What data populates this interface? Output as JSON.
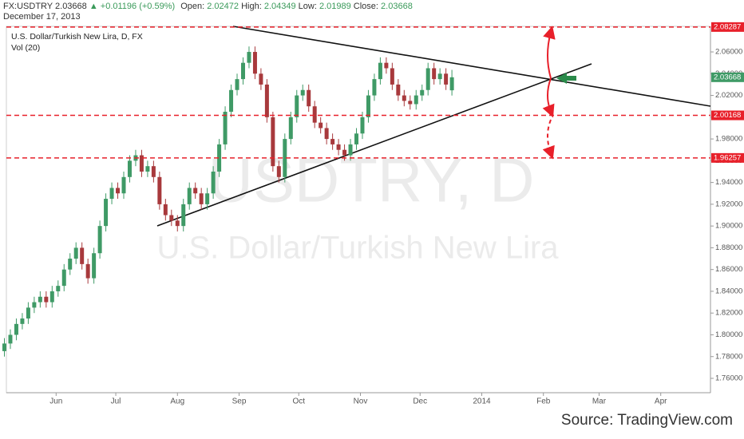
{
  "chart_data": {
    "type": "candlestick",
    "symbol": "FX:USDTRY",
    "change": "▲ +0.01196 (+0.59%)",
    "open_label": "Open:",
    "high_label": "High:",
    "low_label": "Low:",
    "close_label": "Close:",
    "date": "December 17, 2013",
    "legend_title": "U.S. Dollar/Turkish New Lira, D, FX",
    "indicator": "Vol (20)",
    "watermark": "USDTRY, D",
    "watermark_subtitle": "U.S. Dollar/Turkish New Lira",
    "source": "Source: TradingView.com",
    "up_color": "#3f9a66",
    "down_color": "#a8393c",
    "x": [
      "2013-05-06",
      "2013-05-09",
      "2013-05-12",
      "2013-05-15",
      "2013-05-18",
      "2013-05-21",
      "2013-05-24",
      "2013-05-27",
      "2013-05-30",
      "2013-06-02",
      "2013-06-05",
      "2013-06-08",
      "2013-06-11",
      "2013-06-14",
      "2013-06-17",
      "2013-06-20",
      "2013-06-23",
      "2013-06-26",
      "2013-06-29",
      "2013-07-02",
      "2013-07-05",
      "2013-07-08",
      "2013-07-11",
      "2013-07-14",
      "2013-07-17",
      "2013-07-20",
      "2013-07-23",
      "2013-07-26",
      "2013-07-29",
      "2013-08-01",
      "2013-08-04",
      "2013-08-07",
      "2013-08-10",
      "2013-08-13",
      "2013-08-16",
      "2013-08-19",
      "2013-08-22",
      "2013-08-25",
      "2013-08-28",
      "2013-08-31",
      "2013-09-03",
      "2013-09-06",
      "2013-09-09",
      "2013-09-12",
      "2013-09-15",
      "2013-09-18",
      "2013-09-21",
      "2013-09-24",
      "2013-09-27",
      "2013-09-30",
      "2013-10-03",
      "2013-10-06",
      "2013-10-09",
      "2013-10-12",
      "2013-10-15",
      "2013-10-18",
      "2013-10-21",
      "2013-10-24",
      "2013-10-27",
      "2013-10-30",
      "2013-11-02",
      "2013-11-05",
      "2013-11-08",
      "2013-11-11",
      "2013-11-14",
      "2013-11-17",
      "2013-11-20",
      "2013-11-23",
      "2013-11-26",
      "2013-11-29",
      "2013-12-02",
      "2013-12-05",
      "2013-12-08",
      "2013-12-11",
      "2013-12-14",
      "2013-12-17"
    ],
    "open": [
      1.785,
      1.792,
      1.8,
      1.81,
      1.815,
      1.825,
      1.83,
      1.835,
      1.83,
      1.84,
      1.845,
      1.86,
      1.87,
      1.88,
      1.865,
      1.852,
      1.875,
      1.9,
      1.925,
      1.935,
      1.93,
      1.945,
      1.96,
      1.965,
      1.95,
      1.955,
      1.945,
      1.92,
      1.91,
      1.905,
      1.9,
      1.92,
      1.935,
      1.93,
      1.92,
      1.93,
      1.95,
      1.975,
      2.005,
      2.025,
      2.035,
      2.05,
      2.06,
      2.04,
      2.03,
      2.0,
      1.955,
      1.945,
      1.98,
      2.0,
      2.02,
      2.025,
      2.01,
      1.995,
      1.99,
      1.98,
      1.975,
      1.97,
      1.965,
      1.975,
      1.985,
      2.0,
      2.02,
      2.035,
      2.05,
      2.045,
      2.03,
      2.02,
      2.015,
      2.012,
      2.02,
      2.025,
      2.045,
      2.035,
      2.04,
      2.02472
    ],
    "high": [
      1.797,
      1.805,
      1.815,
      1.82,
      1.83,
      1.835,
      1.84,
      1.84,
      1.845,
      1.85,
      1.865,
      1.875,
      1.885,
      1.885,
      1.87,
      1.88,
      1.905,
      1.93,
      1.94,
      1.94,
      1.95,
      1.965,
      1.97,
      1.97,
      1.96,
      1.96,
      1.95,
      1.925,
      1.915,
      1.91,
      1.925,
      1.94,
      1.94,
      1.935,
      1.935,
      1.955,
      1.98,
      2.01,
      2.03,
      2.04,
      2.055,
      2.065,
      2.065,
      2.045,
      2.035,
      2.005,
      1.96,
      1.985,
      2.005,
      2.025,
      2.03,
      2.03,
      2.015,
      2.0,
      1.995,
      1.985,
      1.98,
      1.975,
      1.98,
      1.99,
      2.005,
      2.025,
      2.04,
      2.055,
      2.055,
      2.05,
      2.035,
      2.025,
      2.02,
      2.025,
      2.03,
      2.05,
      2.05,
      2.045,
      2.045,
      2.04349
    ],
    "low": [
      1.78,
      1.787,
      1.795,
      1.805,
      1.81,
      1.82,
      1.825,
      1.825,
      1.825,
      1.835,
      1.84,
      1.855,
      1.865,
      1.86,
      1.847,
      1.847,
      1.87,
      1.895,
      1.92,
      1.925,
      1.925,
      1.94,
      1.955,
      1.945,
      1.945,
      1.94,
      1.915,
      1.905,
      1.9,
      1.895,
      1.895,
      1.915,
      1.925,
      1.915,
      1.915,
      1.925,
      1.945,
      1.97,
      2.0,
      2.02,
      2.03,
      2.045,
      2.035,
      2.025,
      1.995,
      1.95,
      1.94,
      1.94,
      1.975,
      1.995,
      2.015,
      2.005,
      1.99,
      1.985,
      1.975,
      1.97,
      1.965,
      1.96,
      1.96,
      1.97,
      1.98,
      1.995,
      2.015,
      2.03,
      2.04,
      2.025,
      2.015,
      2.01,
      2.007,
      2.007,
      2.015,
      2.02,
      2.03,
      2.03,
      2.025,
      2.01989
    ],
    "close": [
      1.792,
      1.8,
      1.81,
      1.815,
      1.825,
      1.83,
      1.835,
      1.83,
      1.84,
      1.845,
      1.86,
      1.87,
      1.88,
      1.865,
      1.852,
      1.875,
      1.9,
      1.925,
      1.935,
      1.93,
      1.945,
      1.96,
      1.965,
      1.95,
      1.955,
      1.945,
      1.92,
      1.91,
      1.905,
      1.9,
      1.92,
      1.935,
      1.93,
      1.92,
      1.93,
      1.95,
      1.975,
      2.005,
      2.025,
      2.035,
      2.05,
      2.06,
      2.04,
      2.03,
      2.0,
      1.955,
      1.945,
      1.98,
      2.0,
      2.02,
      2.025,
      2.01,
      1.995,
      1.99,
      1.98,
      1.975,
      1.97,
      1.965,
      1.975,
      1.985,
      2.0,
      2.02,
      2.035,
      2.05,
      2.045,
      2.03,
      2.02,
      2.015,
      2.012,
      2.02,
      2.025,
      2.045,
      2.035,
      2.04,
      2.03,
      2.03668
    ],
    "levels": [
      2.08287,
      2.00168,
      1.96257
    ],
    "level_color": "#e8202a",
    "xlim": [
      "2013-05-07",
      "2014-04-26"
    ],
    "xticks": [
      {
        "value": "2013-06-01",
        "label": "Jun"
      },
      {
        "value": "2013-07-01",
        "label": "Jul"
      },
      {
        "value": "2013-08-01",
        "label": "Aug"
      },
      {
        "value": "2013-09-01",
        "label": "Sep"
      },
      {
        "value": "2013-10-01",
        "label": "Oct"
      },
      {
        "value": "2013-11-01",
        "label": "Nov"
      },
      {
        "value": "2013-12-01",
        "label": "Dec"
      },
      {
        "value": "2014-01-01",
        "label": "2014"
      },
      {
        "value": "2014-02-01",
        "label": "Feb"
      },
      {
        "value": "2014-03-01",
        "label": "Mar"
      },
      {
        "value": "2014-04-01",
        "label": "Apr"
      }
    ],
    "ylim": [
      1.7468,
      2.0835
    ],
    "yticks": [
      {
        "value": 1.76,
        "label": "1.76000"
      },
      {
        "value": 1.78,
        "label": "1.78000"
      },
      {
        "value": 1.8,
        "label": "1.80000"
      },
      {
        "value": 1.82,
        "label": "1.82000"
      },
      {
        "value": 1.84,
        "label": "1.84000"
      },
      {
        "value": 1.86,
        "label": "1.86000"
      },
      {
        "value": 1.88,
        "label": "1.88000"
      },
      {
        "value": 1.9,
        "label": "1.90000"
      },
      {
        "value": 1.92,
        "label": "1.92000"
      },
      {
        "value": 1.94,
        "label": "1.94000"
      },
      {
        "value": 1.96,
        "label": "1.96000"
      },
      {
        "value": 1.98,
        "label": "1.98000"
      },
      {
        "value": 2.0,
        "label": "2.00000"
      },
      {
        "value": 2.02,
        "label": "2.02000"
      },
      {
        "value": 2.04,
        "label": "2.04000"
      },
      {
        "value": 2.06,
        "label": "2.06000"
      }
    ],
    "grid": false
  }
}
